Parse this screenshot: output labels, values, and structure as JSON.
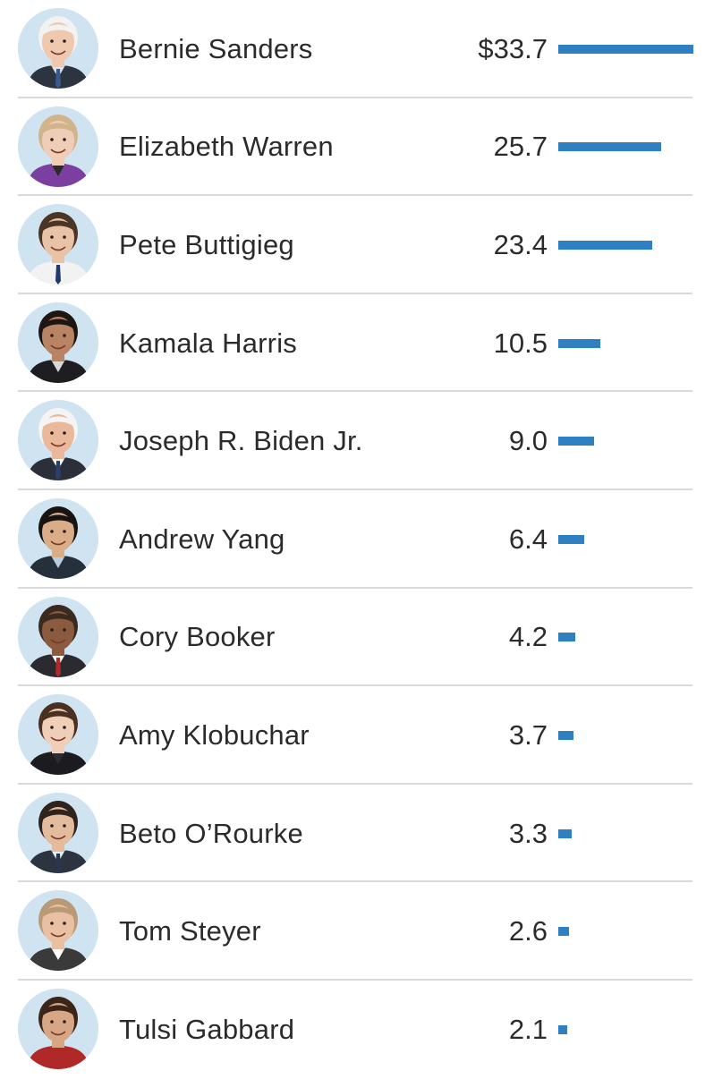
{
  "chart_data": {
    "type": "bar",
    "orientation": "horizontal",
    "title": "",
    "value_prefix_first_row": "$",
    "bar_color": "#2f80c2",
    "xlim": [
      0,
      33.7
    ],
    "categories": [
      "Bernie Sanders",
      "Elizabeth Warren",
      "Pete Buttigieg",
      "Kamala Harris",
      "Joseph R. Biden Jr.",
      "Andrew Yang",
      "Cory Booker",
      "Amy Klobuchar",
      "Beto O’Rourke",
      "Tom Steyer",
      "Tulsi Gabbard"
    ],
    "values": [
      33.7,
      25.7,
      23.4,
      10.5,
      9.0,
      6.4,
      4.2,
      3.7,
      3.3,
      2.6,
      2.1
    ],
    "value_labels": [
      "$33.7",
      "25.7",
      "23.4",
      "10.5",
      "9.0",
      "6.4",
      "4.2",
      "3.7",
      "3.3",
      "2.6",
      "2.1"
    ],
    "avatars": [
      {
        "name": "candidate-photo",
        "skin": "#eec9b0",
        "hair": "#f2f2f2",
        "suit": "#2c3440",
        "shirt": "#d9e4ef",
        "tie": "#3a5a8c"
      },
      {
        "name": "candidate-photo",
        "skin": "#efcdb6",
        "hair": "#d2b48c",
        "suit": "#7b3fa0",
        "shirt": "#2b2b2b",
        "tie": null
      },
      {
        "name": "candidate-photo",
        "skin": "#e8c3a6",
        "hair": "#4a3526",
        "suit": "#f2f2f2",
        "shirt": "#f2f2f2",
        "tie": "#1f3a6b"
      },
      {
        "name": "candidate-photo",
        "skin": "#b98463",
        "hair": "#1e1612",
        "suit": "#1e1e22",
        "shirt": "#d9d9d9",
        "tie": null
      },
      {
        "name": "candidate-photo",
        "skin": "#eab99c",
        "hair": "#f4f4f4",
        "suit": "#2a2f3a",
        "shirt": "#ffffff",
        "tie": "#2b3f6b"
      },
      {
        "name": "candidate-photo",
        "skin": "#d9ad88",
        "hair": "#171310",
        "suit": "#26303d",
        "shirt": "#b9cde0",
        "tie": null
      },
      {
        "name": "candidate-photo",
        "skin": "#8a5b3e",
        "hair": "#3b2a20",
        "suit": "#2a2a30",
        "shirt": "#ffffff",
        "tie": "#b02a2a"
      },
      {
        "name": "candidate-photo",
        "skin": "#efcfb8",
        "hair": "#4a3020",
        "suit": "#1c1c20",
        "shirt": "#2c2c30",
        "tie": null
      },
      {
        "name": "candidate-photo",
        "skin": "#e3bb9d",
        "hair": "#2e241d",
        "suit": "#2c3442",
        "shirt": "#e4ecf4",
        "tie": "#2b3550"
      },
      {
        "name": "candidate-photo",
        "skin": "#e9c0a2",
        "hair": "#b99a76",
        "suit": "#3a3a3a",
        "shirt": "#ffffff",
        "tie": null
      },
      {
        "name": "candidate-photo",
        "skin": "#d7a684",
        "hair": "#3a2518",
        "suit": "#b02828",
        "shirt": "#b02828",
        "tie": null
      }
    ]
  }
}
